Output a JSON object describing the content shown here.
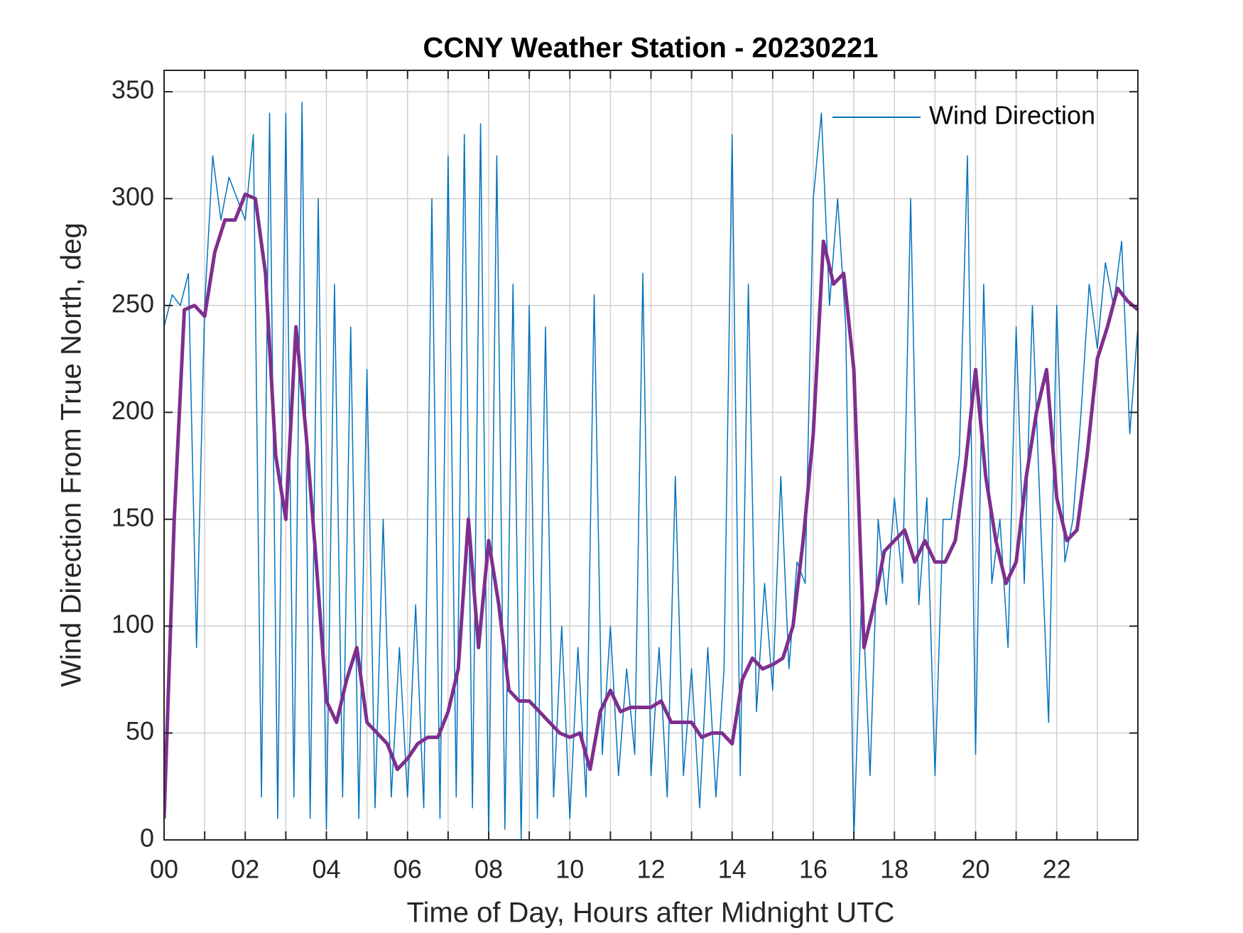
{
  "chart_data": {
    "type": "line",
    "title": "CCNY Weather Station - 20230221",
    "xlabel": "Time of Day, Hours after Midnight UTC",
    "ylabel": "Wind Direction From True North, deg",
    "xlim": [
      0,
      24
    ],
    "xticks": [
      {
        "value": 0,
        "label": "00"
      },
      {
        "value": 2,
        "label": "02"
      },
      {
        "value": 4,
        "label": "04"
      },
      {
        "value": 6,
        "label": "06"
      },
      {
        "value": 8,
        "label": "08"
      },
      {
        "value": 10,
        "label": "10"
      },
      {
        "value": 12,
        "label": "12"
      },
      {
        "value": 14,
        "label": "14"
      },
      {
        "value": 16,
        "label": "16"
      },
      {
        "value": 18,
        "label": "18"
      },
      {
        "value": 20,
        "label": "20"
      },
      {
        "value": 22,
        "label": "22"
      }
    ],
    "xminorticks": [
      1,
      3,
      5,
      7,
      9,
      11,
      13,
      15,
      17,
      19,
      21,
      23
    ],
    "ylim": [
      0,
      360
    ],
    "yticks": [
      0,
      50,
      100,
      150,
      200,
      250,
      300,
      350
    ],
    "grid": true,
    "legend": "northeast",
    "series": [
      {
        "name": "Wind Direction",
        "color": "#0072bd",
        "width": 1.5,
        "x": [
          0,
          0.2,
          0.4,
          0.6,
          0.8,
          1,
          1.2,
          1.4,
          1.6,
          1.8,
          2,
          2.2,
          2.4,
          2.6,
          2.8,
          3,
          3.2,
          3.4,
          3.6,
          3.8,
          4,
          4.2,
          4.4,
          4.6,
          4.8,
          5,
          5.2,
          5.4,
          5.6,
          5.8,
          6,
          6.2,
          6.4,
          6.6,
          6.8,
          7,
          7.2,
          7.4,
          7.6,
          7.8,
          8,
          8.2,
          8.4,
          8.6,
          8.8,
          9,
          9.2,
          9.4,
          9.6,
          9.8,
          10,
          10.2,
          10.4,
          10.6,
          10.8,
          11,
          11.2,
          11.4,
          11.6,
          11.8,
          12,
          12.2,
          12.4,
          12.6,
          12.8,
          13,
          13.2,
          13.4,
          13.6,
          13.8,
          14,
          14.2,
          14.4,
          14.6,
          14.8,
          15,
          15.2,
          15.4,
          15.6,
          15.8,
          16,
          16.2,
          16.4,
          16.6,
          16.8,
          17,
          17.2,
          17.4,
          17.6,
          17.8,
          18,
          18.2,
          18.4,
          18.6,
          18.8,
          19,
          19.2,
          19.4,
          19.6,
          19.8,
          20,
          20.2,
          20.4,
          20.6,
          20.8,
          21,
          21.2,
          21.4,
          21.6,
          21.8,
          22,
          22.2,
          22.4,
          22.6,
          22.8,
          23,
          23.2,
          23.4,
          23.6,
          23.8,
          24
        ],
        "values": [
          240,
          255,
          250,
          265,
          90,
          250,
          320,
          290,
          310,
          300,
          290,
          330,
          20,
          340,
          10,
          340,
          20,
          345,
          10,
          300,
          5,
          260,
          20,
          240,
          10,
          220,
          15,
          150,
          20,
          90,
          20,
          110,
          15,
          300,
          10,
          320,
          20,
          330,
          15,
          335,
          0,
          320,
          5,
          260,
          0,
          250,
          10,
          240,
          20,
          100,
          10,
          90,
          20,
          255,
          40,
          100,
          30,
          80,
          40,
          265,
          30,
          90,
          20,
          170,
          30,
          80,
          15,
          90,
          20,
          80,
          330,
          30,
          260,
          60,
          120,
          70,
          170,
          80,
          130,
          120,
          300,
          340,
          250,
          300,
          240,
          0,
          120,
          30,
          150,
          110,
          160,
          120,
          300,
          110,
          160,
          30,
          150,
          150,
          180,
          320,
          40,
          260,
          120,
          150,
          90,
          240,
          120,
          250,
          150,
          55,
          250,
          130,
          150,
          200,
          260,
          230,
          270,
          250,
          280,
          190,
          240
        ]
      },
      {
        "color": "#7e2f8e",
        "width": 5,
        "x": [
          0,
          0.25,
          0.5,
          0.75,
          1,
          1.25,
          1.5,
          1.75,
          2,
          2.25,
          2.5,
          2.75,
          3,
          3.25,
          3.5,
          3.75,
          4,
          4.25,
          4.5,
          4.75,
          5,
          5.25,
          5.5,
          5.75,
          6,
          6.25,
          6.5,
          6.75,
          7,
          7.25,
          7.5,
          7.75,
          8,
          8.25,
          8.5,
          8.75,
          9,
          9.25,
          9.5,
          9.75,
          10,
          10.25,
          10.5,
          10.75,
          11,
          11.25,
          11.5,
          11.75,
          12,
          12.25,
          12.5,
          12.75,
          13,
          13.25,
          13.5,
          13.75,
          14,
          14.25,
          14.5,
          14.75,
          15,
          15.25,
          15.5,
          15.75,
          16,
          16.25,
          16.5,
          16.75,
          17,
          17.25,
          17.5,
          17.75,
          18,
          18.25,
          18.5,
          18.75,
          19,
          19.25,
          19.5,
          19.75,
          20,
          20.25,
          20.5,
          20.75,
          21,
          21.25,
          21.5,
          21.75,
          22,
          22.25,
          22.5,
          22.75,
          23,
          23.25,
          23.5,
          23.75,
          24
        ],
        "values": [
          10,
          150,
          248,
          250,
          245,
          275,
          290,
          290,
          302,
          300,
          265,
          180,
          150,
          240,
          190,
          130,
          65,
          55,
          75,
          90,
          55,
          50,
          45,
          33,
          38,
          45,
          48,
          48,
          60,
          80,
          150,
          90,
          140,
          110,
          70,
          65,
          65,
          60,
          55,
          50,
          48,
          50,
          33,
          60,
          70,
          60,
          62,
          62,
          62,
          65,
          55,
          55,
          55,
          48,
          50,
          50,
          45,
          75,
          85,
          80,
          82,
          85,
          100,
          140,
          190,
          280,
          260,
          265,
          220,
          90,
          110,
          135,
          140,
          145,
          130,
          140,
          130,
          130,
          140,
          175,
          220,
          170,
          140,
          120,
          130,
          170,
          200,
          220,
          160,
          140,
          145,
          180,
          225,
          240,
          258,
          252,
          248
        ]
      }
    ]
  }
}
